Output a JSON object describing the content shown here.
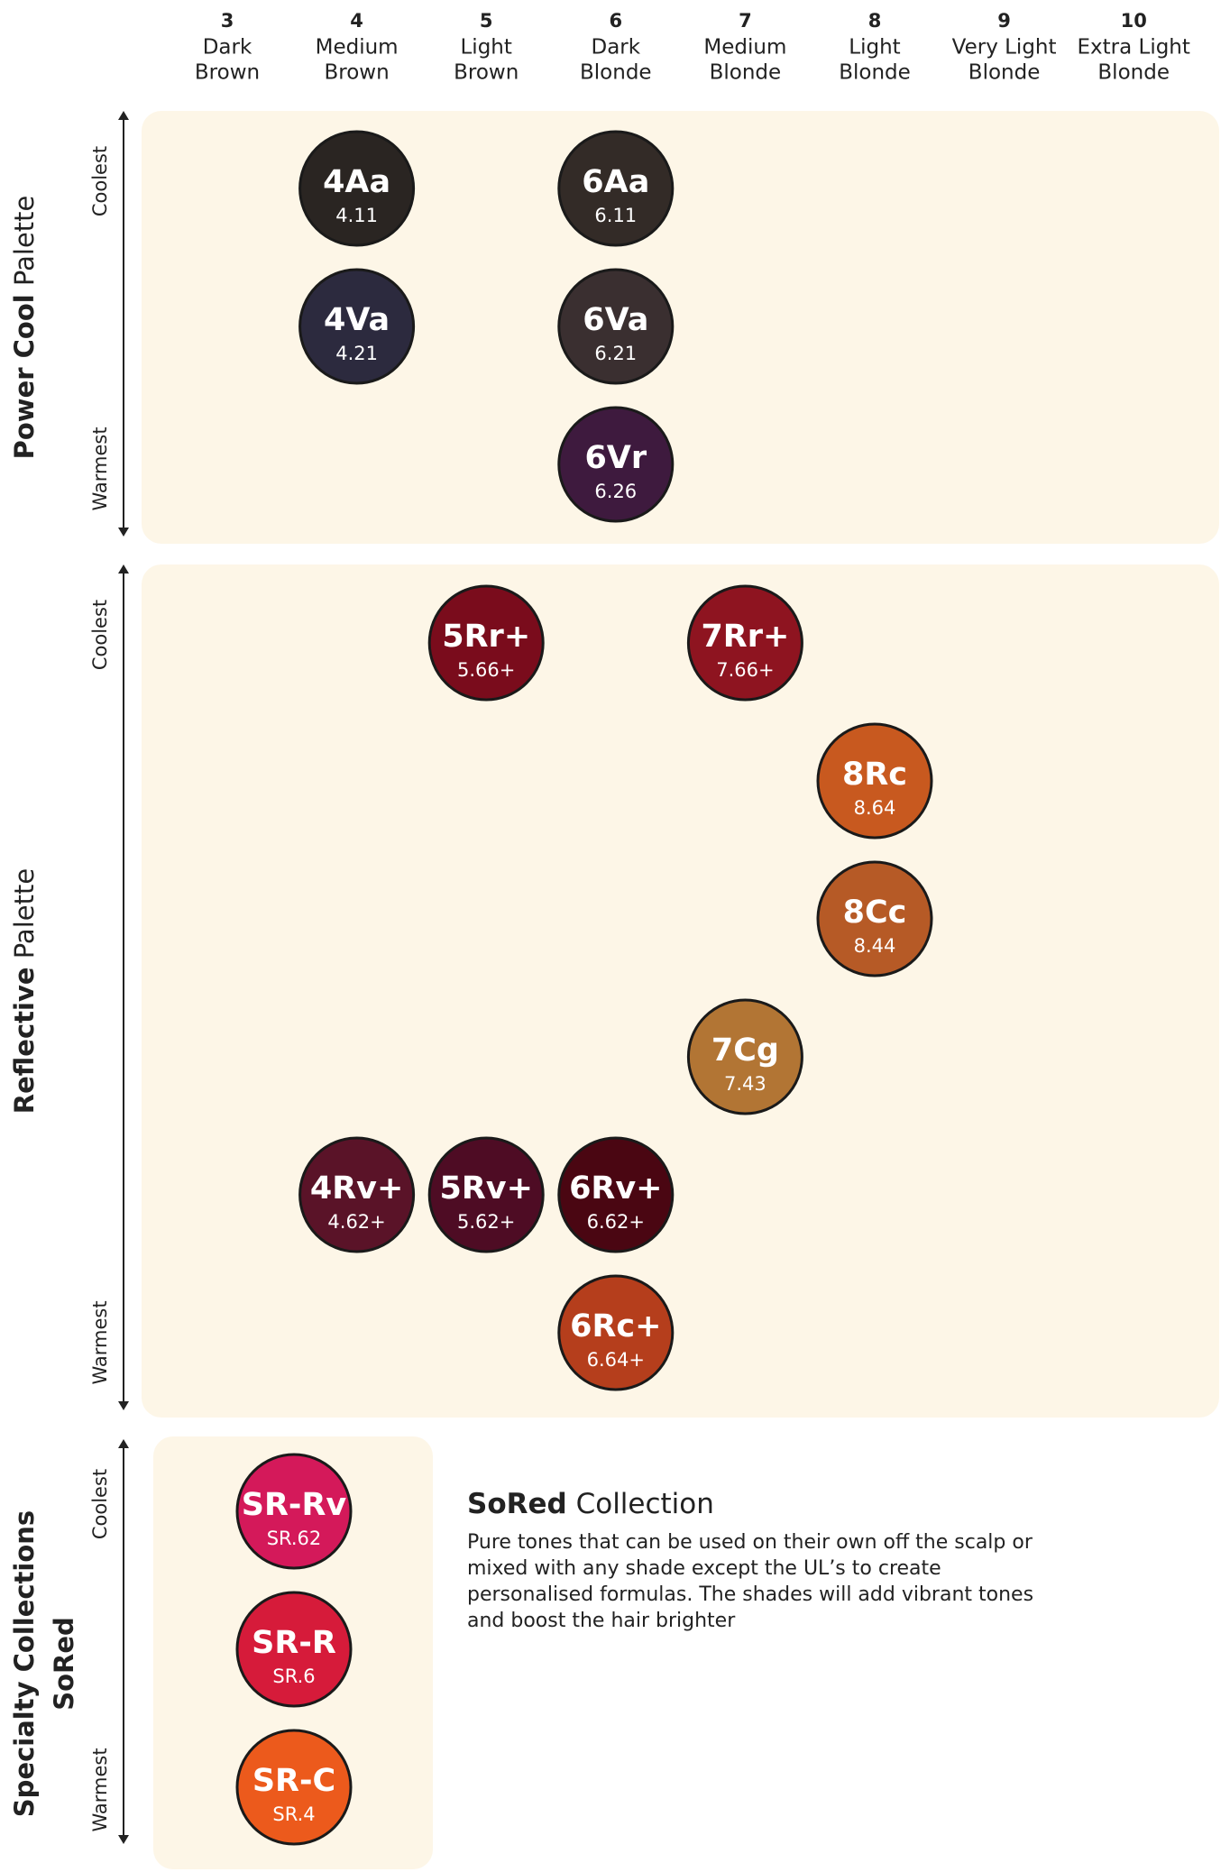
{
  "columns": [
    {
      "number": "3",
      "name": [
        "Dark",
        "Brown"
      ]
    },
    {
      "number": "4",
      "name": [
        "Medium",
        "Brown"
      ]
    },
    {
      "number": "5",
      "name": [
        "Light",
        "Brown"
      ]
    },
    {
      "number": "6",
      "name": [
        "Dark",
        "Blonde"
      ]
    },
    {
      "number": "7",
      "name": [
        "Medium",
        "Blonde"
      ]
    },
    {
      "number": "8",
      "name": [
        "Light",
        "Blonde"
      ]
    },
    {
      "number": "9",
      "name": [
        "Very Light",
        "Blonde"
      ]
    },
    {
      "number": "10",
      "name": [
        "Extra Light",
        "Blonde"
      ]
    }
  ],
  "sections": [
    {
      "title_bold": "Power Cool",
      "title_rest": "Palette",
      "top_label": "Coolest",
      "bottom_label": "Warmest",
      "rows": [
        [
          null,
          {
            "code": "4Aa",
            "number": "4.11",
            "color": "#2a2522"
          },
          null,
          {
            "code": "6Aa",
            "number": "6.11",
            "color": "#332b27"
          },
          null,
          null,
          null,
          null
        ],
        [
          null,
          {
            "code": "4Va",
            "number": "4.21",
            "color": "#2c2a3e"
          },
          null,
          {
            "code": "6Va",
            "number": "6.21",
            "color": "#3a2f30"
          },
          null,
          null,
          null,
          null
        ],
        [
          null,
          null,
          null,
          {
            "code": "6Vr",
            "number": "6.26",
            "color": "#3e1a3e"
          },
          null,
          null,
          null,
          null
        ]
      ]
    },
    {
      "title_bold": "Reflective",
      "title_rest": "Palette",
      "top_label": "Coolest",
      "bottom_label": "Warmest",
      "rows": [
        [
          null,
          null,
          {
            "code": "5Rr+",
            "number": "5.66+",
            "color": "#7a0c1c"
          },
          null,
          {
            "code": "7Rr+",
            "number": "7.66+",
            "color": "#8e1420"
          },
          null,
          null,
          null
        ],
        [
          null,
          null,
          null,
          null,
          null,
          {
            "code": "8Rc",
            "number": "8.64",
            "color": "#c8591f"
          },
          null,
          null
        ],
        [
          null,
          null,
          null,
          null,
          null,
          {
            "code": "8Cc",
            "number": "8.44",
            "color": "#b65a26"
          },
          null,
          null
        ],
        [
          null,
          null,
          null,
          null,
          {
            "code": "7Cg",
            "number": "7.43",
            "color": "#b27534"
          },
          null,
          null,
          null
        ],
        [
          null,
          {
            "code": "4Rv+",
            "number": "4.62+",
            "color": "#5a1328"
          },
          {
            "code": "5Rv+",
            "number": "5.62+",
            "color": "#4e0c24"
          },
          {
            "code": "6Rv+",
            "number": "6.62+",
            "color": "#4a0612"
          },
          null,
          null,
          null,
          null
        ],
        [
          null,
          null,
          null,
          {
            "code": "6Rc+",
            "number": "6.64+",
            "color": "#b53e1c"
          },
          null,
          null,
          null,
          null
        ]
      ]
    }
  ],
  "specialty": {
    "title": "Specialty Collections",
    "subtitle": "SoRed",
    "top_label": "Coolest",
    "bottom_label": "Warmest",
    "swatches": [
      {
        "code": "SR-Rv",
        "number": "SR.62",
        "color": "#d4195a"
      },
      {
        "code": "SR-R",
        "number": "SR.6",
        "color": "#d61b3a"
      },
      {
        "code": "SR-C",
        "number": "SR.4",
        "color": "#ec5a1c"
      }
    ],
    "description": {
      "title_bold": "SoRed",
      "title_rest": "Collection",
      "text": "Pure tones that can be used on their own off the scalp or mixed with any shade except the UL’s to create personalised formulas. The shades will add vibrant tones and boost the hair brighter"
    }
  }
}
